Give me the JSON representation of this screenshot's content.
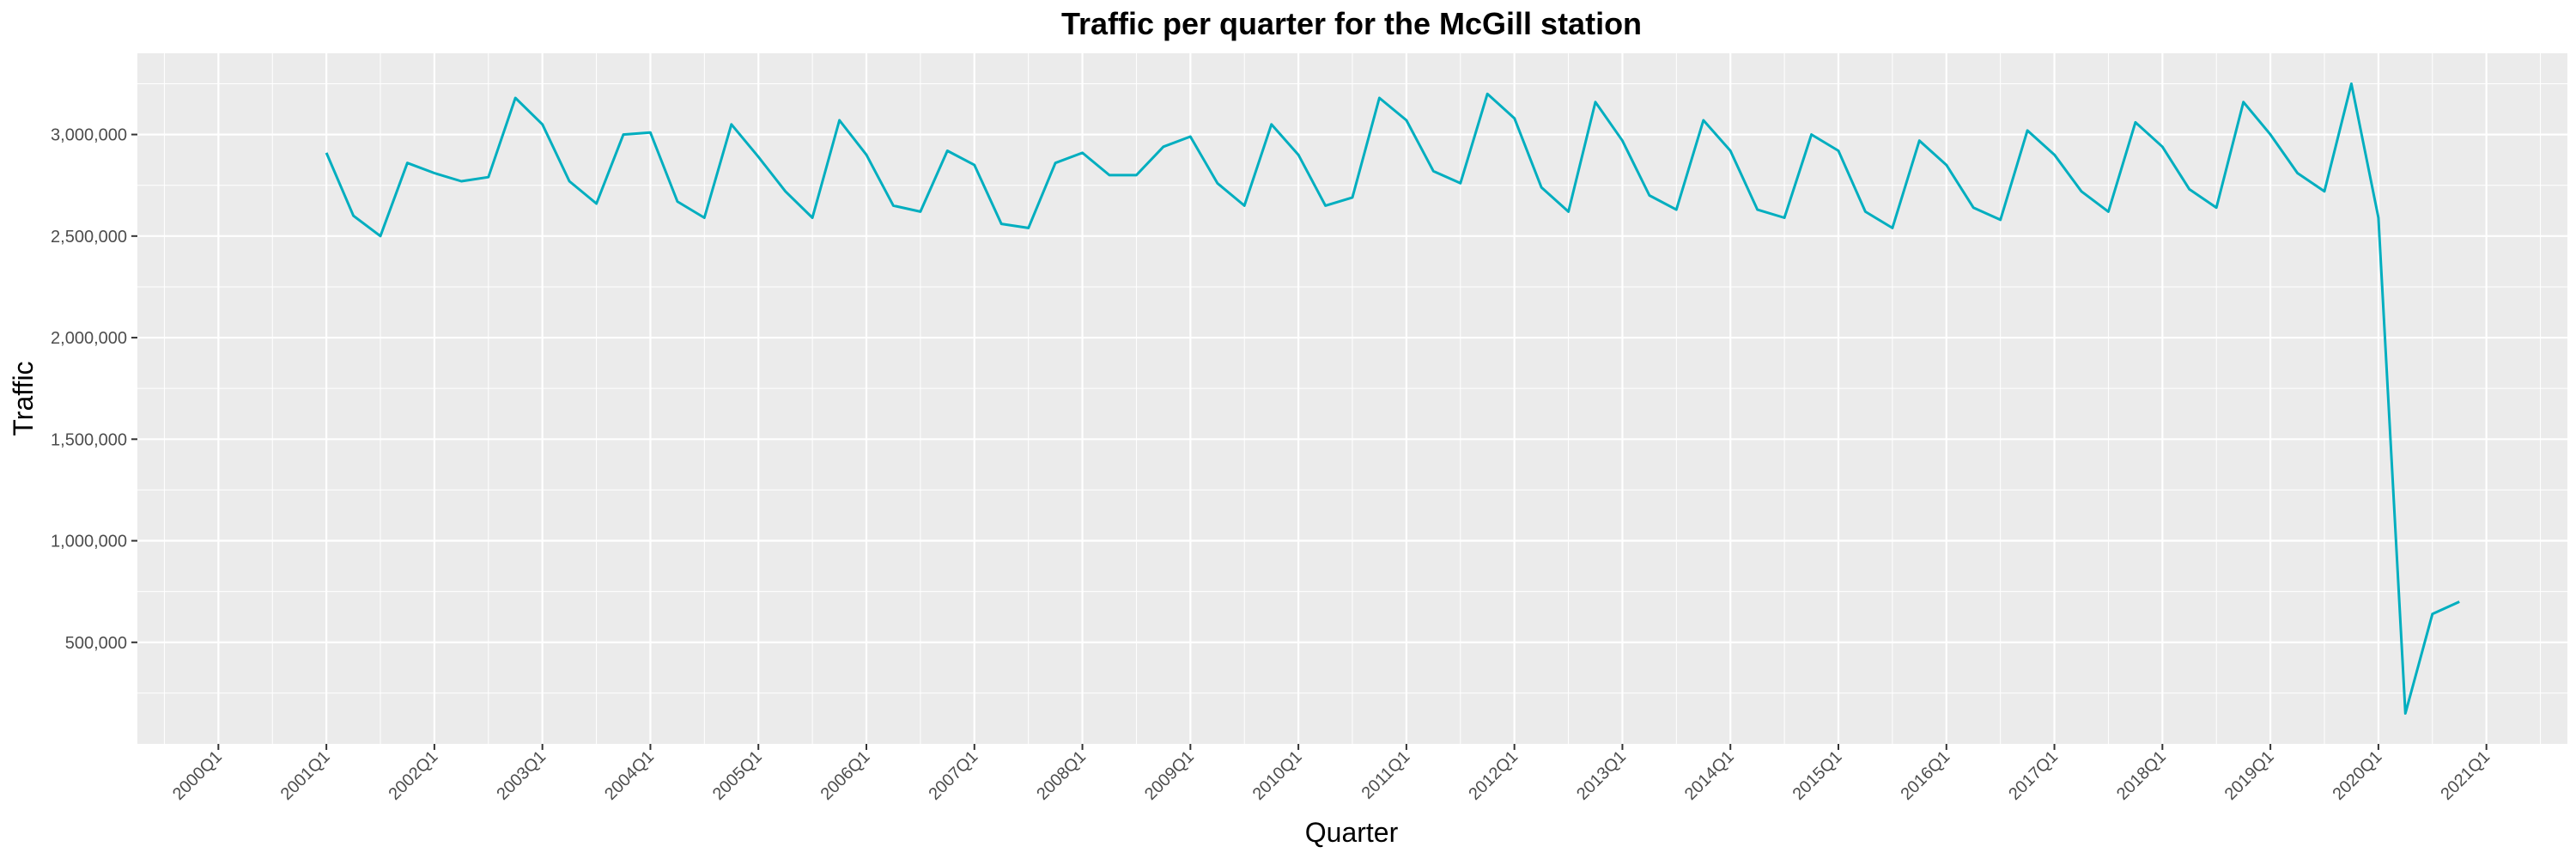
{
  "chart_data": {
    "type": "line",
    "title": "Traffic per quarter for the McGill station",
    "xlabel": "Quarter",
    "ylabel": "Traffic",
    "grid": true,
    "legend": "none",
    "colors": {
      "line": "#00aebf",
      "panel": "#ebebeb",
      "grid": "#ffffff",
      "tick": "#333333"
    },
    "x_tick_labels": [
      "2000Q1",
      "2001Q1",
      "2002Q1",
      "2003Q1",
      "2004Q1",
      "2005Q1",
      "2006Q1",
      "2007Q1",
      "2008Q1",
      "2009Q1",
      "2010Q1",
      "2011Q1",
      "2012Q1",
      "2013Q1",
      "2014Q1",
      "2015Q1",
      "2016Q1",
      "2017Q1",
      "2018Q1",
      "2019Q1",
      "2020Q1",
      "2021Q1"
    ],
    "y_ticks": [
      500000,
      1000000,
      1500000,
      2000000,
      2500000,
      3000000
    ],
    "y_tick_labels": [
      "500,000",
      "1,000,000",
      "1,500,000",
      "2,000,000",
      "2,500,000",
      "3,000,000"
    ],
    "ylim": [
      0,
      3400000
    ],
    "series": [
      {
        "x": [
          "2001Q1",
          "2001Q2",
          "2001Q3",
          "2001Q4",
          "2002Q1",
          "2002Q2",
          "2002Q3",
          "2002Q4",
          "2003Q1",
          "2003Q2",
          "2003Q3",
          "2003Q4",
          "2004Q1",
          "2004Q2",
          "2004Q3",
          "2004Q4",
          "2005Q1",
          "2005Q2",
          "2005Q3",
          "2005Q4",
          "2006Q1",
          "2006Q2",
          "2006Q3",
          "2006Q4",
          "2007Q1",
          "2007Q2",
          "2007Q3",
          "2007Q4",
          "2008Q1",
          "2008Q2",
          "2008Q3",
          "2008Q4",
          "2009Q1",
          "2009Q2",
          "2009Q3",
          "2009Q4",
          "2010Q1",
          "2010Q2",
          "2010Q3",
          "2010Q4",
          "2011Q1",
          "2011Q2",
          "2011Q3",
          "2011Q4",
          "2012Q1",
          "2012Q2",
          "2012Q3",
          "2012Q4",
          "2013Q1",
          "2013Q2",
          "2013Q3",
          "2013Q4",
          "2014Q1",
          "2014Q2",
          "2014Q3",
          "2014Q4",
          "2015Q1",
          "2015Q2",
          "2015Q3",
          "2015Q4",
          "2016Q1",
          "2016Q2",
          "2016Q3",
          "2016Q4",
          "2017Q1",
          "2017Q2",
          "2017Q3",
          "2017Q4",
          "2018Q1",
          "2018Q2",
          "2018Q3",
          "2018Q4",
          "2019Q1",
          "2019Q2",
          "2019Q3",
          "2019Q4",
          "2020Q1",
          "2020Q2",
          "2020Q3",
          "2020Q4"
        ],
        "values": [
          2910000,
          2600000,
          2500000,
          2860000,
          2810000,
          2770000,
          2790000,
          3180000,
          3050000,
          2770000,
          2660000,
          3000000,
          3010000,
          2670000,
          2590000,
          3050000,
          2890000,
          2720000,
          2590000,
          3070000,
          2900000,
          2650000,
          2620000,
          2920000,
          2850000,
          2560000,
          2540000,
          2860000,
          2910000,
          2800000,
          2800000,
          2940000,
          2990000,
          2760000,
          2650000,
          3050000,
          2900000,
          2650000,
          2690000,
          3180000,
          3070000,
          2820000,
          2760000,
          3200000,
          3080000,
          2740000,
          2620000,
          3160000,
          2970000,
          2700000,
          2630000,
          3070000,
          2920000,
          2630000,
          2590000,
          3000000,
          2920000,
          2620000,
          2540000,
          2970000,
          2850000,
          2640000,
          2580000,
          3020000,
          2900000,
          2720000,
          2620000,
          3060000,
          2940000,
          2730000,
          2640000,
          3160000,
          3000000,
          2810000,
          2720000,
          3250000,
          2590000,
          150000,
          640000,
          700000
        ]
      }
    ]
  }
}
